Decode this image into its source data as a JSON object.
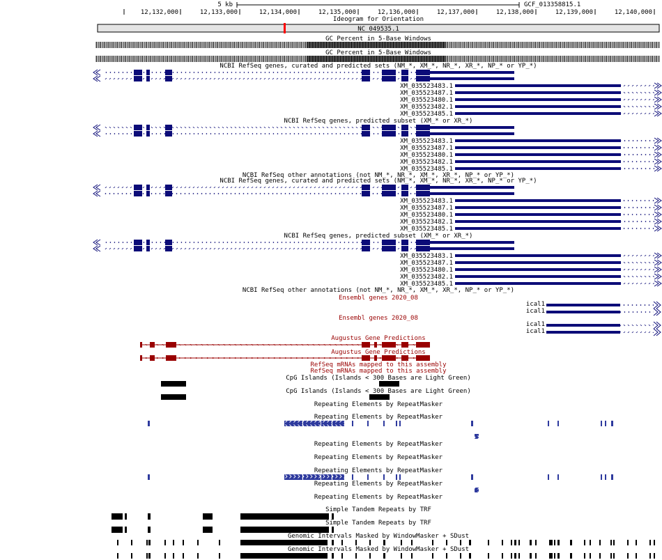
{
  "ruler": {
    "scale_label": "5 kb",
    "assembly_label": "GCF_013358815.1",
    "ticks": [
      "12,132,000",
      "12,133,000",
      "12,134,000",
      "12,135,000",
      "12,136,000",
      "12,137,000",
      "12,138,000",
      "12,139,000",
      "12,140,000"
    ]
  },
  "ideogram": {
    "title": "Ideogram for Orientation",
    "chrom_name": "NC_049535.1"
  },
  "tracks": {
    "gc_percent_label": "GC Percent in 5-Base Windows",
    "refseq_all_label": "NCBI RefSeq genes, curated and predicted sets (NM_*, XM_*, NR_*, XR_*, NP_* or YP_*)",
    "refseq_predicted_label": "NCBI RefSeq genes, predicted subset (XM_* or XR_*)",
    "refseq_other_label": "NCBI RefSeq other annotations (not NM_*, NR_*, XM_*, XR_*, NP_* or YP_*)",
    "ensembl_label": "Ensembl genes 2020_08",
    "augustus_label": "Augustus Gene Predictions",
    "refseq_mrna_label": "RefSeq mRNAs mapped to this assembly",
    "cpg_label": "CpG Islands (Islands < 300 Bases are Light Green)",
    "repeatmasker_label": "Repeating Elements by RepeatMasker",
    "trf_label": "Simple Tandem Repeats by TRF",
    "windowmasker_label": "Genomic Intervals Masked by WindowMasker + SDust"
  },
  "transcripts": [
    "XM_035523483.1",
    "XM_035523487.1",
    "XM_035523480.1",
    "XM_035523482.1",
    "XM_035523485.1"
  ],
  "ensembl_transcripts": [
    "ical1",
    "ical1"
  ],
  "colors": {
    "refseq": "#0c0c78",
    "ensembl": "#0c0c78",
    "augustus": "#990000",
    "repeatmasker": "#2e3a9e",
    "ideogram_marker": "#ff0000",
    "tracks_text": "#000000"
  }
}
